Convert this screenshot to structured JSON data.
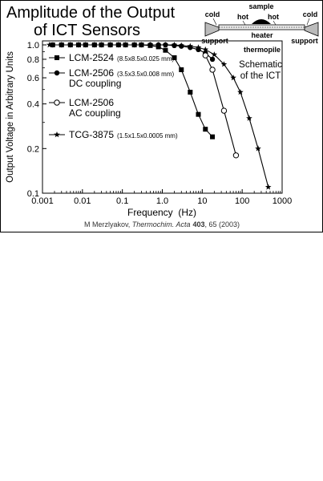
{
  "slide": {
    "title_line1": "Amplitude of the Output",
    "title_line2": "of ICT Sensors",
    "citation": {
      "authors": "M Merzlyakov, ",
      "journal": "Thermochim. Acta",
      "volume": "403",
      "rest": ", 65 (2003)"
    }
  },
  "schematic": {
    "labels": {
      "sample": "sample",
      "cold_left": "cold",
      "cold_right": "cold",
      "hot_left": "hot",
      "hot_right": "hot",
      "heater": "heater",
      "support_left": "support",
      "support_right": "support",
      "thermopile": "thermopile",
      "caption_line1": "Schematic",
      "caption_line2": "of the ICT"
    }
  },
  "chart_data": {
    "type": "line",
    "title": "",
    "xlabel": "Frequency  (Hz)",
    "ylabel": "Output Voltage in Arbitrary Units",
    "xscale": "log",
    "yscale": "log",
    "xlim": [
      0.001,
      1000
    ],
    "ylim": [
      0.1,
      1.0
    ],
    "x_ticks": [
      {
        "value": 0.001,
        "label": "0.001"
      },
      {
        "value": 0.01,
        "label": "0.01"
      },
      {
        "value": 0.1,
        "label": "0.1"
      },
      {
        "value": 1,
        "label": "1.0"
      },
      {
        "value": 10,
        "label": "10"
      },
      {
        "value": 100,
        "label": "100"
      },
      {
        "value": 1000,
        "label": "1000"
      }
    ],
    "y_ticks": [
      {
        "value": 0.1,
        "label": "0.1"
      },
      {
        "value": 0.2,
        "label": "0.2"
      },
      {
        "value": 0.4,
        "label": "0.4"
      },
      {
        "value": 0.6,
        "label": "0.6"
      },
      {
        "value": 0.8,
        "label": "0.8"
      },
      {
        "value": 1.0,
        "label": "1.0"
      }
    ],
    "grid": false,
    "legend_position": "bottom-left",
    "series": [
      {
        "name": "LCM-2524",
        "name_detail": "(8.5x8.5x0.025 mm)",
        "marker": "square-filled",
        "x": [
          0.0018,
          0.003,
          0.005,
          0.008,
          0.012,
          0.02,
          0.03,
          0.05,
          0.08,
          0.12,
          0.2,
          0.3,
          0.5,
          0.8,
          1.2,
          2,
          3,
          5,
          8,
          12,
          18
        ],
        "y": [
          1.0,
          1.0,
          1.0,
          1.0,
          1.0,
          1.0,
          1.0,
          1.0,
          1.0,
          1.0,
          1.0,
          1.0,
          0.99,
          0.97,
          0.92,
          0.82,
          0.68,
          0.48,
          0.34,
          0.27,
          0.24
        ]
      },
      {
        "name": "LCM-2506",
        "name_line2": "DC coupling",
        "name_detail": "(3.5x3.5x0.008 mm)",
        "marker": "circle-filled",
        "x": [
          0.0018,
          0.003,
          0.005,
          0.008,
          0.012,
          0.02,
          0.03,
          0.05,
          0.08,
          0.12,
          0.2,
          0.3,
          0.5,
          0.8,
          1.2,
          2,
          3,
          5,
          8,
          12,
          18
        ],
        "y": [
          1.0,
          1.0,
          1.0,
          1.0,
          1.0,
          1.0,
          1.0,
          1.0,
          1.0,
          1.0,
          1.0,
          1.0,
          1.0,
          1.0,
          1.0,
          0.99,
          0.98,
          0.96,
          0.93,
          0.88,
          0.8
        ]
      },
      {
        "name": "LCM-2506",
        "name_line2": "AC coupling",
        "marker": "circle-open",
        "x": [
          12,
          18,
          35,
          70
        ],
        "y": [
          0.85,
          0.68,
          0.36,
          0.18
        ]
      },
      {
        "name": "TCG-3875",
        "name_detail": "(1.5x1.5x0.0005 mm)",
        "marker": "star",
        "x": [
          0.0015,
          0.003,
          0.005,
          0.008,
          0.012,
          0.02,
          0.03,
          0.05,
          0.08,
          0.12,
          0.2,
          0.3,
          0.5,
          0.8,
          1.2,
          2,
          3,
          5,
          8,
          12,
          20,
          35,
          60,
          90,
          150,
          250,
          450
        ],
        "y": [
          1.0,
          1.0,
          1.0,
          1.0,
          1.0,
          1.0,
          1.0,
          1.0,
          1.0,
          1.0,
          1.0,
          1.0,
          1.0,
          1.0,
          1.0,
          1.0,
          0.99,
          0.98,
          0.96,
          0.93,
          0.86,
          0.74,
          0.6,
          0.48,
          0.32,
          0.2,
          0.11
        ]
      }
    ]
  }
}
